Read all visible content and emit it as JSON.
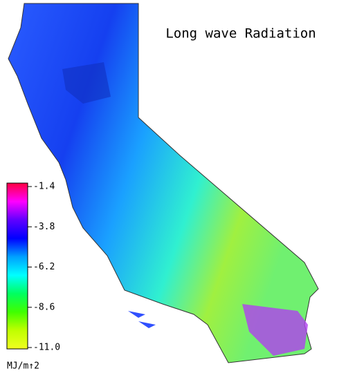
{
  "title": "Long wave Radiation",
  "colorbar": {
    "lim": [
      -11,
      -1.4
    ],
    "ticks": [
      -1.4,
      -3.8,
      -6.2,
      -8.6,
      {
        "value": -11,
        "label": "-11.0"
      }
    ],
    "colors": [
      "#ff0040",
      "#ff00ff",
      "#6000ff",
      "#0000ff",
      "#00a0ff",
      "#00ffff",
      "#00ff60",
      "#40ff00",
      "#c0ff00",
      "#f0ff20"
    ],
    "unit": "MJ/m↑2"
  }
}
